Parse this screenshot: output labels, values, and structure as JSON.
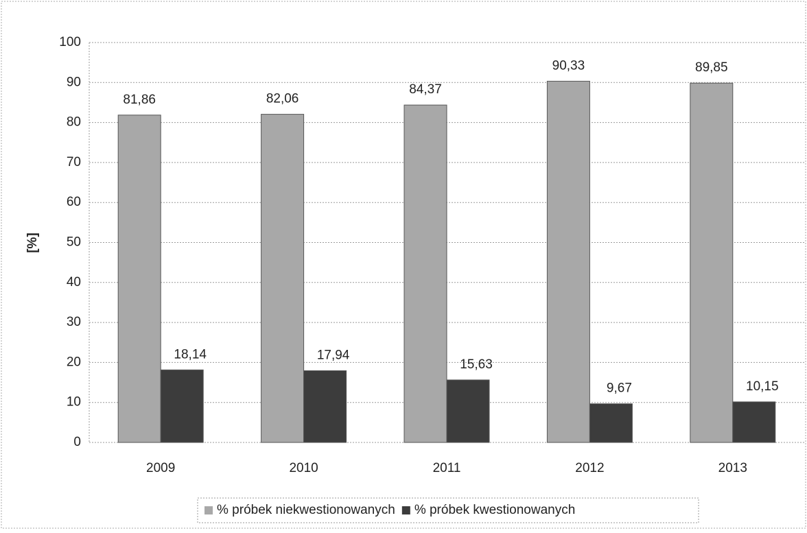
{
  "chart_data": {
    "type": "bar",
    "categories": [
      "2009",
      "2010",
      "2011",
      "2012",
      "2013"
    ],
    "series": [
      {
        "name": "% próbek niekwestionowanych",
        "color": "#a8a8a8",
        "values": [
          81.86,
          82.06,
          84.37,
          90.33,
          89.85
        ],
        "value_labels": [
          "81,86",
          "82,06",
          "84,37",
          "90,33",
          "89,85"
        ]
      },
      {
        "name": "% próbek kwestionowanych",
        "color": "#3c3c3c",
        "values": [
          18.14,
          17.94,
          15.63,
          9.67,
          10.15
        ],
        "value_labels": [
          "18,14",
          "17,94",
          "15,63",
          "9,67",
          "10,15"
        ]
      }
    ],
    "ylabel": "[%]",
    "ylim": [
      0,
      100
    ],
    "yticks": [
      0,
      10,
      20,
      30,
      40,
      50,
      60,
      70,
      80,
      90,
      100
    ],
    "grid": true,
    "legend": "bottom"
  }
}
